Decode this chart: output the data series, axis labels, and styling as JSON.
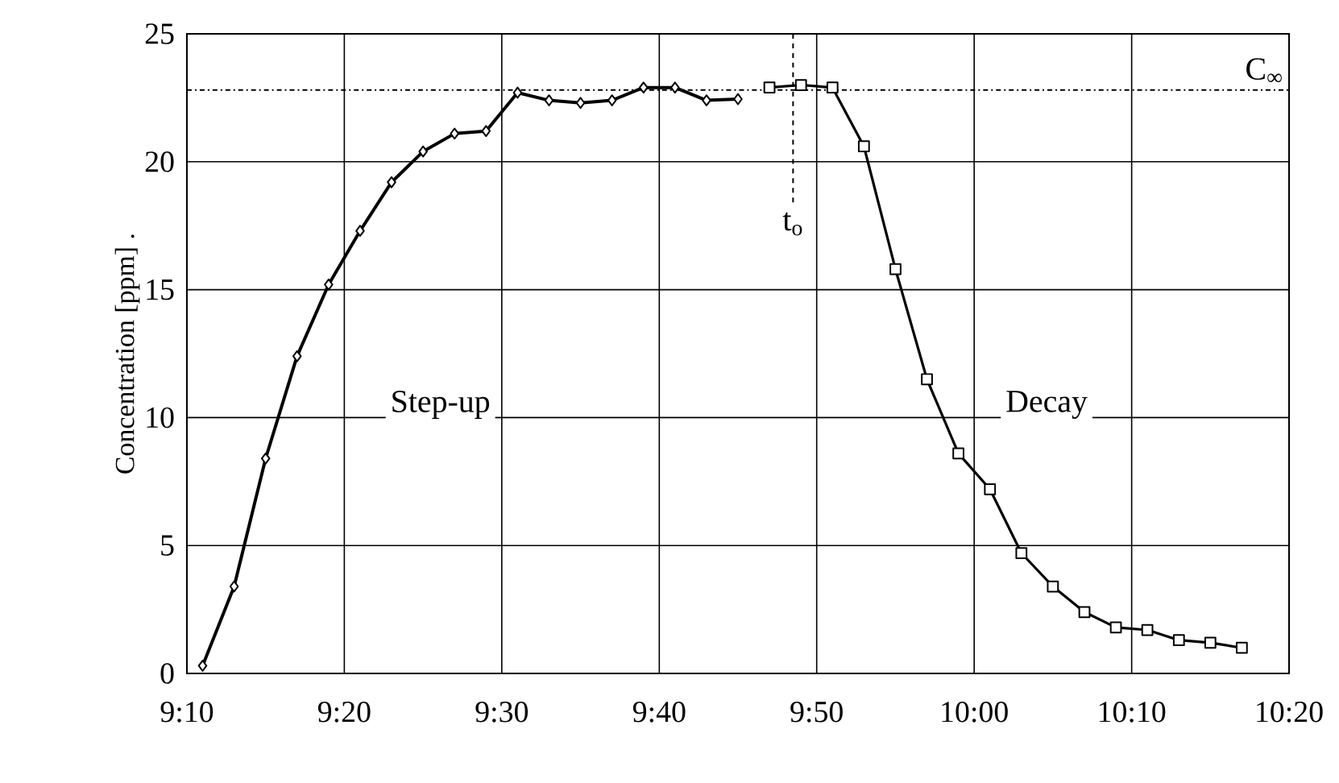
{
  "chart_data": {
    "type": "line",
    "ylabel": "Concentration [ppm] .",
    "xlim": [
      9.1667,
      10.3333
    ],
    "ylim": [
      0,
      25
    ],
    "xticks": [
      {
        "value": 9.1667,
        "label": "9:10"
      },
      {
        "value": 9.3333,
        "label": "9:20"
      },
      {
        "value": 9.5,
        "label": "9:30"
      },
      {
        "value": 9.6667,
        "label": "9:40"
      },
      {
        "value": 9.8333,
        "label": "9:50"
      },
      {
        "value": 10.0,
        "label": "10:00"
      },
      {
        "value": 10.1667,
        "label": "10:10"
      },
      {
        "value": 10.3333,
        "label": "10:20"
      }
    ],
    "yticks": [
      0,
      5,
      10,
      15,
      20,
      25
    ],
    "grid": true,
    "line_style": "solid",
    "series": [
      {
        "color": "#000000",
        "marker": "diamond",
        "x": [
          9.1833,
          9.2167,
          9.25,
          9.2833,
          9.3167,
          9.35,
          9.3833,
          9.4167,
          9.45,
          9.4833,
          9.5167,
          9.55,
          9.5833,
          9.6167,
          9.65,
          9.6833,
          9.7167,
          9.75
        ],
        "values": [
          0.3,
          3.4,
          8.4,
          12.4,
          15.2,
          17.3,
          19.2,
          20.4,
          21.1,
          21.2,
          22.7,
          22.4,
          22.3,
          22.4,
          22.9,
          22.9,
          22.4,
          22.45
        ]
      },
      {
        "color": "#000000",
        "marker": "square",
        "x": [
          9.7833,
          9.8167,
          9.85,
          9.8833,
          9.9167,
          9.95,
          9.9833,
          10.0167,
          10.05,
          10.0833,
          10.1167,
          10.15,
          10.1833,
          10.2167,
          10.25,
          10.2833
        ],
        "values": [
          22.9,
          23.0,
          22.9,
          20.6,
          15.8,
          11.5,
          8.6,
          7.2,
          4.7,
          3.4,
          2.4,
          1.8,
          1.7,
          1.3,
          1.2,
          1.0
        ]
      }
    ],
    "ref_lines": [
      {
        "axis": "y",
        "value": 22.8,
        "label": "C$_{∞}$",
        "line_style": "dashdot"
      },
      {
        "axis": "x",
        "value": 9.8083,
        "label": "t$_{o}$",
        "line_style": "dashed"
      }
    ],
    "annotations": [
      "Step-up",
      "Decay"
    ]
  }
}
